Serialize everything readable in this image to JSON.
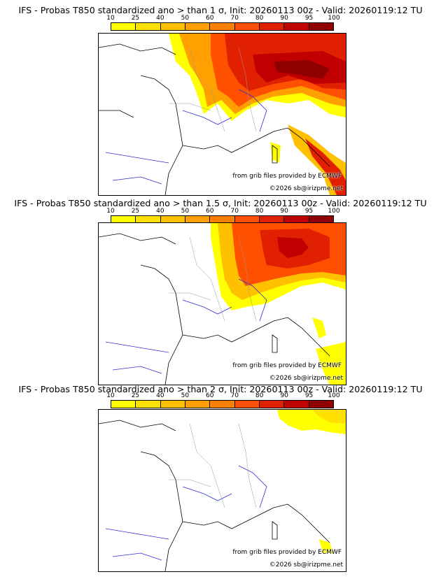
{
  "scale": {
    "labels": [
      "10",
      "25",
      "40",
      "50",
      "60",
      "70",
      "80",
      "90",
      "95",
      "100"
    ],
    "colors": [
      "#ffff00",
      "#ffe000",
      "#ffc000",
      "#ffa000",
      "#ff8000",
      "#ff5000",
      "#e02000",
      "#c00000",
      "#900000"
    ]
  },
  "credits": {
    "source": "from grib files provided by ECMWF",
    "copyright": "©2026 sb@irizpme.net"
  },
  "panels": [
    {
      "title": "IFS - Probas T850  standardized ano > than 1 σ, Init: 20260113 00z - Valid: 20260119:12 TU"
    },
    {
      "title": "IFS - Probas T850  standardized ano > than 1.5 σ, Init: 20260113 00z - Valid: 20260119:12 TU"
    },
    {
      "title": "IFS - Probas T850  standardized ano > than 2 σ, Init: 20260113 00z - Valid: 20260119:12 TU"
    }
  ]
}
